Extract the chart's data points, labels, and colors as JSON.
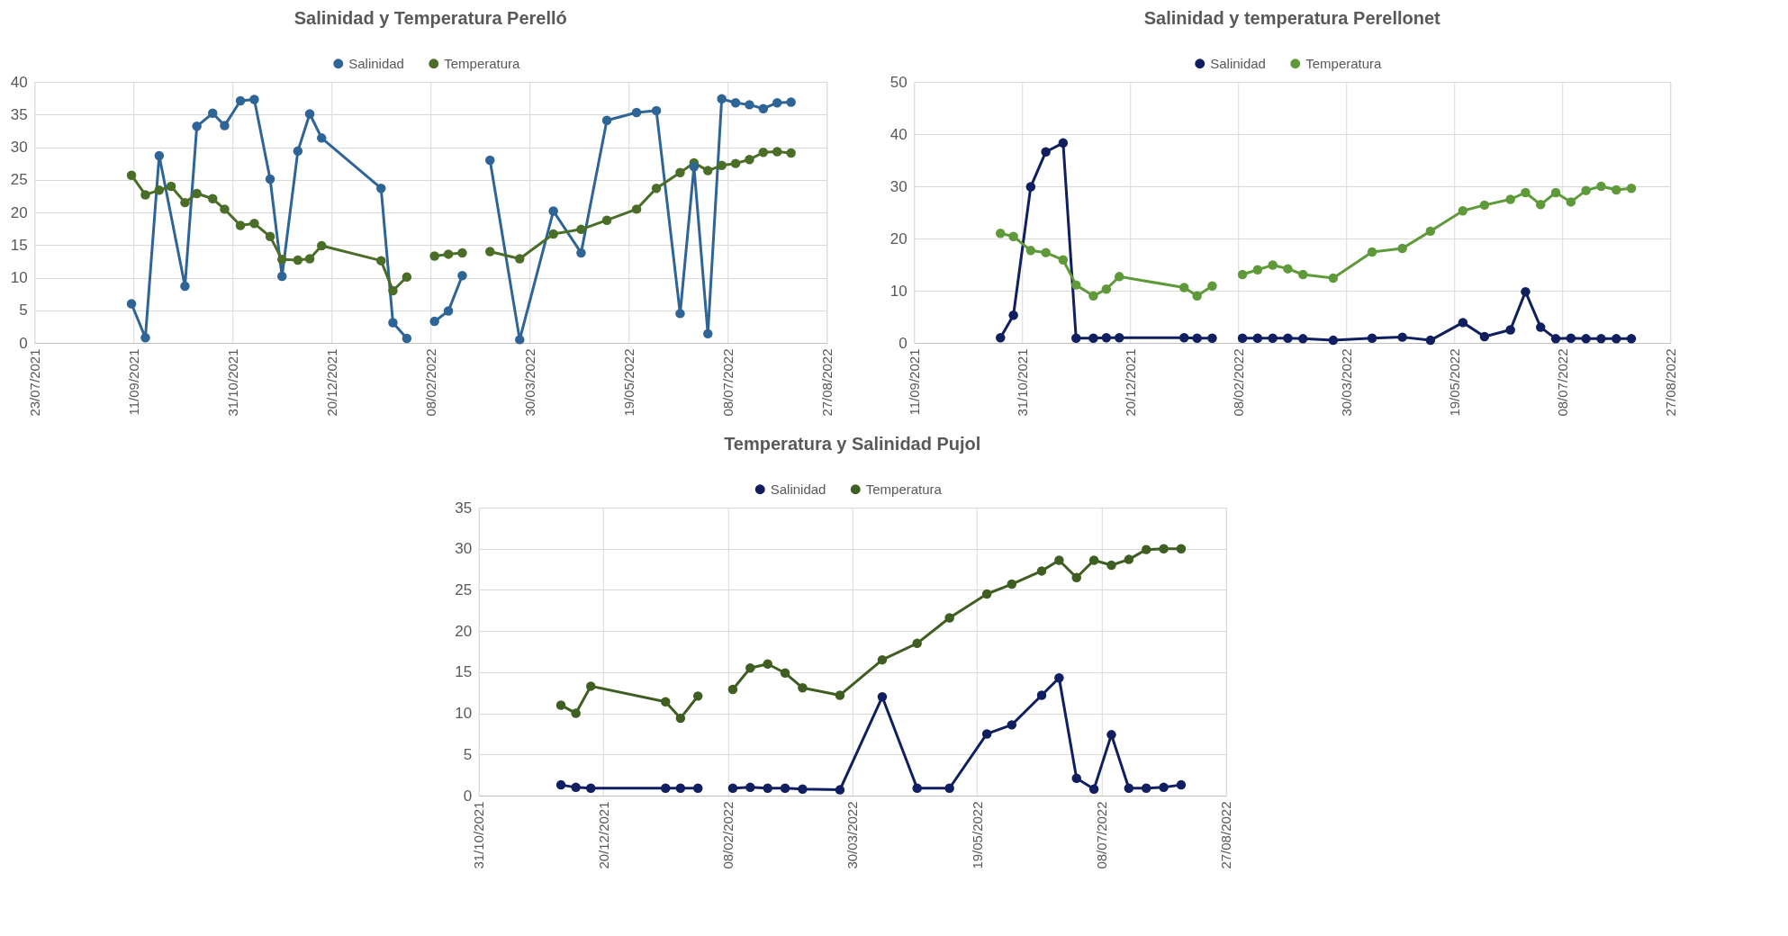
{
  "chart_data": [
    {
      "type": "line",
      "title": "Salinidad y Temperatura Perelló",
      "legend": "top",
      "grid": true,
      "marker": "circle",
      "line_style": "solid",
      "xlim": [
        "2021-07-23",
        "2022-08-27"
      ],
      "xticks": [
        {
          "value": "2021-07-23",
          "label": "23/07/2021"
        },
        {
          "value": "2021-09-11",
          "label": "11/09/2021"
        },
        {
          "value": "2021-10-31",
          "label": "31/10/2021"
        },
        {
          "value": "2021-12-20",
          "label": "20/12/2021"
        },
        {
          "value": "2022-02-08",
          "label": "08/02/2022"
        },
        {
          "value": "2022-03-30",
          "label": "30/03/2022"
        },
        {
          "value": "2022-05-19",
          "label": "19/05/2022"
        },
        {
          "value": "2022-07-08",
          "label": "08/07/2022"
        },
        {
          "value": "2022-08-27",
          "label": "27/08/2022"
        }
      ],
      "ylim": [
        0,
        40
      ],
      "yticks": [
        0,
        5,
        10,
        15,
        20,
        25,
        30,
        35,
        40
      ],
      "series": [
        {
          "name": "Salinidad",
          "color": "#2e6496",
          "x": [
            "2021-09-10",
            "2021-09-17",
            "2021-09-24",
            "2021-10-07",
            "2021-10-13",
            "2021-10-21",
            "2021-10-27",
            "2021-11-04",
            "2021-11-11",
            "2021-11-19",
            "2021-11-25",
            "2021-12-03",
            "2021-12-09",
            "2021-12-15",
            "2022-01-14",
            "2022-01-20",
            "2022-01-27",
            "2022-02-03",
            "2022-02-10",
            "2022-02-17",
            "2022-02-24",
            "2022-03-03",
            "2022-03-10",
            "2022-03-25",
            "2022-04-11",
            "2022-04-25",
            "2022-05-08",
            "2022-05-23",
            "2022-06-02",
            "2022-06-14",
            "2022-06-21",
            "2022-06-28",
            "2022-07-05",
            "2022-07-12",
            "2022-07-19",
            "2022-07-26",
            "2022-08-02",
            "2022-08-09"
          ],
          "values": [
            6.0,
            0.8,
            28.7,
            8.7,
            33.2,
            35.2,
            33.3,
            37.1,
            37.3,
            25.1,
            10.2,
            29.4,
            35.1,
            31.4,
            23.7,
            3.1,
            0.7,
            null,
            3.3,
            4.9,
            10.3,
            null,
            28.0,
            0.5,
            20.2,
            13.8,
            34.1,
            35.3,
            35.6,
            4.5,
            27.0,
            1.4,
            37.4,
            36.8,
            36.5,
            35.9,
            36.8,
            36.9
          ]
        },
        {
          "name": "Temperatura",
          "color": "#4a6e28",
          "x": [
            "2021-09-10",
            "2021-09-17",
            "2021-09-24",
            "2021-09-30",
            "2021-10-07",
            "2021-10-13",
            "2021-10-21",
            "2021-10-27",
            "2021-11-04",
            "2021-11-11",
            "2021-11-19",
            "2021-11-25",
            "2021-12-03",
            "2021-12-09",
            "2021-12-15",
            "2022-01-14",
            "2022-01-20",
            "2022-01-27",
            "2022-02-03",
            "2022-02-10",
            "2022-02-17",
            "2022-02-24",
            "2022-03-03",
            "2022-03-10",
            "2022-03-25",
            "2022-04-11",
            "2022-04-25",
            "2022-05-08",
            "2022-05-23",
            "2022-06-02",
            "2022-06-14",
            "2022-06-21",
            "2022-06-28",
            "2022-07-05",
            "2022-07-12",
            "2022-07-19",
            "2022-07-26",
            "2022-08-02",
            "2022-08-09"
          ],
          "values": [
            25.7,
            22.7,
            23.4,
            24.0,
            21.5,
            22.9,
            22.1,
            20.5,
            18.0,
            18.3,
            16.3,
            12.8,
            12.7,
            12.9,
            14.9,
            12.6,
            8.0,
            10.1,
            null,
            13.3,
            13.6,
            13.8,
            null,
            14.0,
            12.9,
            16.7,
            17.4,
            18.8,
            20.5,
            23.7,
            26.1,
            27.6,
            26.4,
            27.2,
            27.5,
            28.1,
            29.2,
            29.3,
            29.1
          ]
        }
      ]
    },
    {
      "type": "line",
      "title": "Salinidad y temperatura Perellonet",
      "legend": "top",
      "grid": true,
      "marker": "circle",
      "line_style": "solid",
      "xlim": [
        "2021-09-11",
        "2022-08-27"
      ],
      "xticks": [
        {
          "value": "2021-09-11",
          "label": "11/09/2021"
        },
        {
          "value": "2021-10-31",
          "label": "31/10/2021"
        },
        {
          "value": "2021-12-20",
          "label": "20/12/2021"
        },
        {
          "value": "2022-02-08",
          "label": "08/02/2022"
        },
        {
          "value": "2022-03-30",
          "label": "30/03/2022"
        },
        {
          "value": "2022-05-19",
          "label": "19/05/2022"
        },
        {
          "value": "2022-07-08",
          "label": "08/07/2022"
        },
        {
          "value": "2022-08-27",
          "label": "27/08/2022"
        }
      ],
      "ylim": [
        0,
        50
      ],
      "yticks": [
        0,
        10,
        20,
        30,
        40,
        50
      ],
      "x": [
        "2021-10-21",
        "2021-10-27",
        "2021-11-04",
        "2021-11-11",
        "2021-11-19",
        "2021-11-25",
        "2021-12-03",
        "2021-12-09",
        "2021-12-15",
        "2022-01-14",
        "2022-01-20",
        "2022-01-27",
        "2022-02-03",
        "2022-02-10",
        "2022-02-17",
        "2022-02-24",
        "2022-03-03",
        "2022-03-10",
        "2022-03-24",
        "2022-04-11",
        "2022-04-25",
        "2022-05-08",
        "2022-05-23",
        "2022-06-02",
        "2022-06-14",
        "2022-06-21",
        "2022-06-28",
        "2022-07-05",
        "2022-07-12",
        "2022-07-19",
        "2022-07-26",
        "2022-08-02",
        "2022-08-09"
      ],
      "series": [
        {
          "name": "Salinidad",
          "color": "#0f1f5f",
          "values": [
            1.0,
            5.3,
            29.9,
            36.6,
            38.3,
            0.9,
            0.9,
            1.0,
            1.0,
            1.0,
            0.9,
            0.9,
            null,
            0.9,
            0.9,
            0.9,
            0.9,
            0.8,
            0.5,
            0.9,
            1.1,
            0.5,
            3.9,
            1.2,
            2.5,
            9.8,
            3.0,
            0.8,
            0.9,
            0.8,
            0.8,
            0.8,
            0.8
          ]
        },
        {
          "name": "Temperatura",
          "color": "#5f9a3a",
          "values": [
            21.0,
            20.4,
            17.7,
            17.3,
            15.9,
            11.1,
            9.0,
            10.3,
            12.7,
            10.6,
            9.0,
            10.9,
            null,
            13.1,
            14.0,
            14.9,
            14.2,
            13.1,
            12.4,
            17.4,
            18.1,
            21.4,
            25.3,
            26.4,
            27.5,
            28.8,
            26.5,
            28.8,
            27.0,
            29.2,
            30.0,
            29.3,
            29.6
          ]
        }
      ]
    },
    {
      "type": "line",
      "title": "Temperatura y Salinidad Pujol",
      "legend": "top",
      "grid": true,
      "marker": "circle",
      "line_style": "solid",
      "xlim": [
        "2021-10-31",
        "2022-08-27"
      ],
      "xticks": [
        {
          "value": "2021-10-31",
          "label": "31/10/2021"
        },
        {
          "value": "2021-12-20",
          "label": "20/12/2021"
        },
        {
          "value": "2022-02-08",
          "label": "08/02/2022"
        },
        {
          "value": "2022-03-30",
          "label": "30/03/2022"
        },
        {
          "value": "2022-05-19",
          "label": "19/05/2022"
        },
        {
          "value": "2022-07-08",
          "label": "08/07/2022"
        },
        {
          "value": "2022-08-27",
          "label": "27/08/2022"
        }
      ],
      "ylim": [
        0,
        35
      ],
      "yticks": [
        0,
        5,
        10,
        15,
        20,
        25,
        30,
        35
      ],
      "x": [
        "2021-12-03",
        "2021-12-09",
        "2021-12-15",
        "2022-01-14",
        "2022-01-20",
        "2022-01-27",
        "2022-02-03",
        "2022-02-10",
        "2022-02-17",
        "2022-02-24",
        "2022-03-03",
        "2022-03-10",
        "2022-03-25",
        "2022-04-11",
        "2022-04-25",
        "2022-05-08",
        "2022-05-23",
        "2022-06-02",
        "2022-06-14",
        "2022-06-21",
        "2022-06-28",
        "2022-07-05",
        "2022-07-12",
        "2022-07-19",
        "2022-07-26",
        "2022-08-02",
        "2022-08-09"
      ],
      "series": [
        {
          "name": "Salinidad",
          "color": "#0f1f5f",
          "values": [
            1.3,
            1.0,
            0.9,
            0.9,
            0.9,
            0.9,
            null,
            0.9,
            1.0,
            0.9,
            0.9,
            0.8,
            0.7,
            12.0,
            0.9,
            0.9,
            7.5,
            8.6,
            12.2,
            14.3,
            2.1,
            0.8,
            7.4,
            0.9,
            0.9,
            1.0,
            1.3
          ]
        },
        {
          "name": "Temperatura",
          "color": "#3e5e22",
          "values": [
            11.0,
            10.0,
            13.3,
            11.4,
            9.4,
            12.1,
            null,
            12.9,
            15.5,
            16.0,
            14.9,
            13.1,
            12.2,
            16.5,
            18.5,
            21.6,
            24.5,
            25.7,
            27.3,
            28.6,
            26.5,
            28.6,
            28.0,
            28.7,
            29.9,
            30.0,
            30.0
          ]
        }
      ]
    }
  ]
}
